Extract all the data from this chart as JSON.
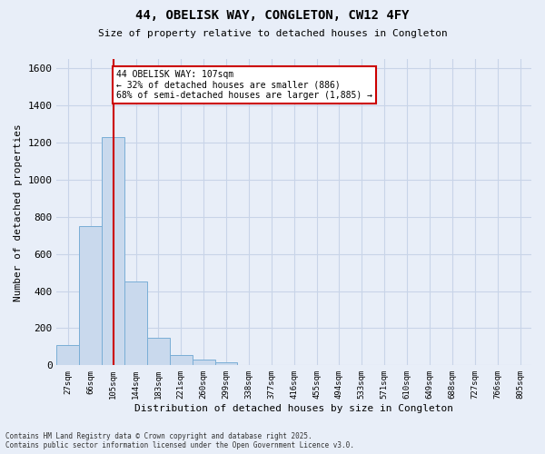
{
  "title_line1": "44, OBELISK WAY, CONGLETON, CW12 4FY",
  "title_line2": "Size of property relative to detached houses in Congleton",
  "xlabel": "Distribution of detached houses by size in Congleton",
  "ylabel": "Number of detached properties",
  "categories": [
    "27sqm",
    "66sqm",
    "105sqm",
    "144sqm",
    "183sqm",
    "221sqm",
    "260sqm",
    "299sqm",
    "338sqm",
    "377sqm",
    "416sqm",
    "455sqm",
    "494sqm",
    "533sqm",
    "571sqm",
    "610sqm",
    "649sqm",
    "688sqm",
    "727sqm",
    "766sqm",
    "805sqm"
  ],
  "values": [
    110,
    750,
    1230,
    450,
    150,
    55,
    30,
    15,
    0,
    0,
    0,
    0,
    0,
    0,
    0,
    0,
    0,
    0,
    0,
    0,
    0
  ],
  "bar_color": "#c9d9ed",
  "bar_edge_color": "#7aaed6",
  "ylim": [
    0,
    1650
  ],
  "yticks": [
    0,
    200,
    400,
    600,
    800,
    1000,
    1200,
    1400,
    1600
  ],
  "vline_x": 2,
  "vline_color": "#cc0000",
  "annotation_text": "44 OBELISK WAY: 107sqm\n← 32% of detached houses are smaller (886)\n68% of semi-detached houses are larger (1,885) →",
  "annotation_box_color": "#ffffff",
  "annotation_box_edge_color": "#cc0000",
  "grid_color": "#c8d4e8",
  "background_color": "#e8eef8",
  "footnote": "Contains HM Land Registry data © Crown copyright and database right 2025.\nContains public sector information licensed under the Open Government Licence v3.0."
}
